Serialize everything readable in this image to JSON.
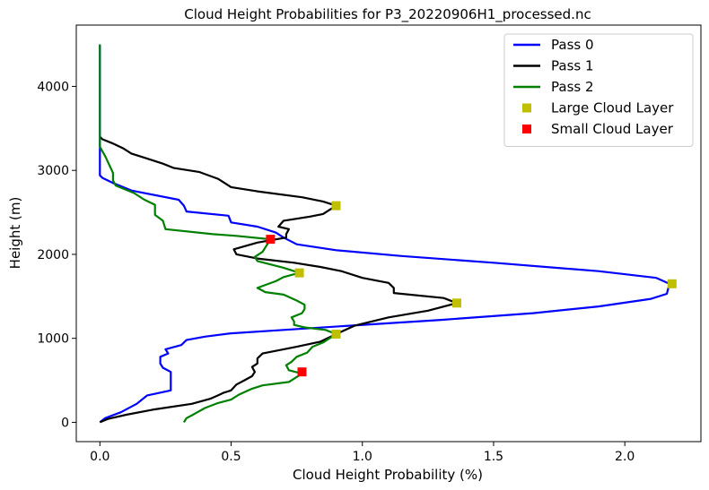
{
  "chart_data": {
    "type": "line",
    "title": "Cloud Height Probabilities for P3_20220906H1_processed.nc",
    "xlabel": "Cloud Height Probability (%)",
    "ylabel": "Height (m)",
    "xlim": [
      -0.09,
      2.29
    ],
    "ylim": [
      -230,
      4730
    ],
    "xticks": [
      0.0,
      0.5,
      1.0,
      1.5,
      2.0
    ],
    "xtick_labels": [
      "0.0",
      "0.5",
      "1.0",
      "1.5",
      "2.0"
    ],
    "yticks": [
      0,
      1000,
      2000,
      3000,
      4000
    ],
    "ytick_labels": [
      "0",
      "1000",
      "2000",
      "3000",
      "4000"
    ],
    "grid": false,
    "legend_position": "top-right",
    "series": [
      {
        "name": "Pass 0",
        "color": "#0000ff",
        "points": [
          [
            0,
            0
          ],
          [
            0.02,
            50
          ],
          [
            0.08,
            120
          ],
          [
            0.14,
            220
          ],
          [
            0.18,
            320
          ],
          [
            0.27,
            380
          ],
          [
            0.27,
            600
          ],
          [
            0.24,
            650
          ],
          [
            0.23,
            700
          ],
          [
            0.23,
            780
          ],
          [
            0.26,
            820
          ],
          [
            0.25,
            870
          ],
          [
            0.31,
            920
          ],
          [
            0.33,
            980
          ],
          [
            0.4,
            1020
          ],
          [
            0.5,
            1060
          ],
          [
            0.7,
            1100
          ],
          [
            0.95,
            1150
          ],
          [
            1.3,
            1220
          ],
          [
            1.65,
            1300
          ],
          [
            1.9,
            1380
          ],
          [
            2.1,
            1470
          ],
          [
            2.16,
            1530
          ],
          [
            2.17,
            1650
          ],
          [
            2.12,
            1720
          ],
          [
            1.9,
            1800
          ],
          [
            1.5,
            1900
          ],
          [
            1.15,
            1980
          ],
          [
            0.9,
            2050
          ],
          [
            0.75,
            2120
          ],
          [
            0.7,
            2200
          ],
          [
            0.67,
            2260
          ],
          [
            0.6,
            2330
          ],
          [
            0.5,
            2380
          ],
          [
            0.49,
            2460
          ],
          [
            0.33,
            2510
          ],
          [
            0.32,
            2580
          ],
          [
            0.3,
            2650
          ],
          [
            0.12,
            2760
          ],
          [
            0.05,
            2850
          ],
          [
            0.01,
            2910
          ],
          [
            0,
            2940
          ],
          [
            0,
            3200
          ],
          [
            0,
            4500
          ]
        ]
      },
      {
        "name": "Pass 1",
        "color": "#000000",
        "points": [
          [
            0,
            0
          ],
          [
            0.03,
            40
          ],
          [
            0.1,
            90
          ],
          [
            0.2,
            150
          ],
          [
            0.35,
            220
          ],
          [
            0.42,
            280
          ],
          [
            0.45,
            320
          ],
          [
            0.47,
            350
          ],
          [
            0.5,
            380
          ],
          [
            0.52,
            450
          ],
          [
            0.55,
            500
          ],
          [
            0.58,
            550
          ],
          [
            0.59,
            600
          ],
          [
            0.58,
            660
          ],
          [
            0.6,
            700
          ],
          [
            0.6,
            760
          ],
          [
            0.62,
            820
          ],
          [
            0.75,
            900
          ],
          [
            0.84,
            960
          ],
          [
            0.9,
            1050
          ],
          [
            0.97,
            1150
          ],
          [
            1.1,
            1250
          ],
          [
            1.25,
            1330
          ],
          [
            1.36,
            1420
          ],
          [
            1.31,
            1480
          ],
          [
            1.12,
            1540
          ],
          [
            1.12,
            1600
          ],
          [
            1.1,
            1660
          ],
          [
            1.0,
            1720
          ],
          [
            0.92,
            1800
          ],
          [
            0.84,
            1850
          ],
          [
            0.74,
            1900
          ],
          [
            0.6,
            1950
          ],
          [
            0.52,
            2000
          ],
          [
            0.51,
            2060
          ],
          [
            0.6,
            2140
          ],
          [
            0.71,
            2200
          ],
          [
            0.71,
            2240
          ],
          [
            0.72,
            2300
          ],
          [
            0.68,
            2330
          ],
          [
            0.7,
            2400
          ],
          [
            0.8,
            2450
          ],
          [
            0.85,
            2480
          ],
          [
            0.9,
            2580
          ],
          [
            0.85,
            2630
          ],
          [
            0.77,
            2680
          ],
          [
            0.6,
            2750
          ],
          [
            0.5,
            2800
          ],
          [
            0.45,
            2900
          ],
          [
            0.38,
            2980
          ],
          [
            0.28,
            3030
          ],
          [
            0.24,
            3080
          ],
          [
            0.17,
            3150
          ],
          [
            0.12,
            3200
          ],
          [
            0.09,
            3260
          ],
          [
            0.05,
            3320
          ],
          [
            0.01,
            3370
          ],
          [
            0,
            3400
          ]
        ]
      },
      {
        "name": "Pass 2",
        "color": "#008000",
        "points": [
          [
            0.32,
            0
          ],
          [
            0.33,
            50
          ],
          [
            0.36,
            100
          ],
          [
            0.4,
            170
          ],
          [
            0.45,
            230
          ],
          [
            0.5,
            270
          ],
          [
            0.53,
            330
          ],
          [
            0.58,
            400
          ],
          [
            0.62,
            440
          ],
          [
            0.72,
            480
          ],
          [
            0.77,
            580
          ],
          [
            0.72,
            620
          ],
          [
            0.71,
            680
          ],
          [
            0.73,
            720
          ],
          [
            0.75,
            780
          ],
          [
            0.79,
            830
          ],
          [
            0.81,
            900
          ],
          [
            0.85,
            950
          ],
          [
            0.9,
            1050
          ],
          [
            0.86,
            1100
          ],
          [
            0.78,
            1130
          ],
          [
            0.74,
            1160
          ],
          [
            0.74,
            1200
          ],
          [
            0.73,
            1250
          ],
          [
            0.77,
            1300
          ],
          [
            0.78,
            1350
          ],
          [
            0.78,
            1400
          ],
          [
            0.75,
            1450
          ],
          [
            0.7,
            1520
          ],
          [
            0.63,
            1550
          ],
          [
            0.6,
            1600
          ],
          [
            0.67,
            1680
          ],
          [
            0.7,
            1730
          ],
          [
            0.76,
            1780
          ],
          [
            0.7,
            1840
          ],
          [
            0.65,
            1880
          ],
          [
            0.6,
            1920
          ],
          [
            0.59,
            1970
          ],
          [
            0.62,
            2030
          ],
          [
            0.65,
            2180
          ],
          [
            0.52,
            2220
          ],
          [
            0.43,
            2240
          ],
          [
            0.25,
            2300
          ],
          [
            0.24,
            2400
          ],
          [
            0.21,
            2470
          ],
          [
            0.21,
            2590
          ],
          [
            0.17,
            2650
          ],
          [
            0.13,
            2730
          ],
          [
            0.06,
            2820
          ],
          [
            0.05,
            2880
          ],
          [
            0.05,
            2970
          ],
          [
            0.02,
            3170
          ],
          [
            0,
            3280
          ],
          [
            0,
            3350
          ],
          [
            0,
            4500
          ]
        ]
      }
    ],
    "markers": [
      {
        "name": "Large Cloud Layer",
        "color": "#bfbf00",
        "points": [
          [
            0.9,
            2580
          ],
          [
            0.76,
            1780
          ],
          [
            2.18,
            1650
          ],
          [
            1.36,
            1420
          ],
          [
            0.9,
            1050
          ]
        ]
      },
      {
        "name": "Small Cloud Layer",
        "color": "#ff0000",
        "points": [
          [
            0.65,
            2180
          ],
          [
            0.77,
            600
          ]
        ]
      }
    ],
    "legend": [
      "Pass 0",
      "Pass 1",
      "Pass 2",
      "Large Cloud Layer",
      "Small Cloud Layer"
    ]
  }
}
